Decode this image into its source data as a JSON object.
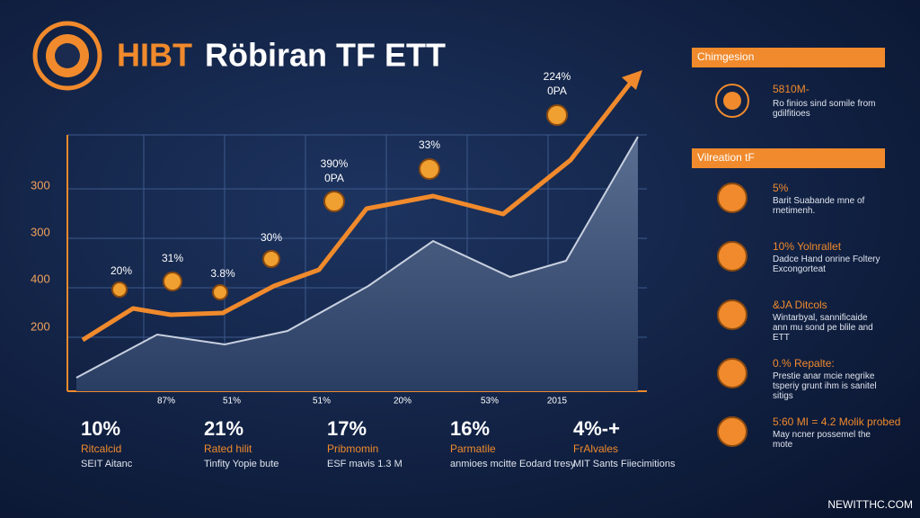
{
  "header": {
    "title_a": "HIBT",
    "title_b": "Röbiran TF ETT"
  },
  "chart": {
    "annotations": [
      [
        "224%",
        "0PA"
      ],
      [
        "33%"
      ],
      [
        "390%",
        "0PA"
      ],
      [
        "30%"
      ],
      [
        "31%"
      ],
      [
        "20%"
      ],
      [
        "3.8%"
      ]
    ],
    "y_labels": [
      "300",
      "300",
      "400",
      "200"
    ],
    "x_labels": [
      "87%",
      "51%",
      "51%",
      "20%",
      "53%",
      "2015"
    ]
  },
  "stats": [
    {
      "value": "10%",
      "label": "Ritcalcid",
      "sub": "SEIT Aitanc"
    },
    {
      "value": "21%",
      "label": "Rated hilit",
      "sub": "Tinfity Yopie bute"
    },
    {
      "value": "17%",
      "label": "Pribmomin",
      "sub": "ESF mavis 1.3 M"
    },
    {
      "value": "16%",
      "label": "Parmatile",
      "sub": "anmioes mcitte Eodard tresy"
    },
    {
      "value": "4%-+",
      "label": "FrAlvales",
      "sub": "MIT Sants Fiiecimitions"
    }
  ],
  "panel": {
    "header1": "Chimgesion",
    "item1": {
      "title": "5810M-",
      "text": "Ro finios sind somile from gdilfitioes"
    },
    "header2": "Vilreation tF",
    "items": [
      {
        "title": "5%",
        "text": "Barit Suabande mne of rnetimenh."
      },
      {
        "title": "10% Yolnrallet",
        "text": "Dadce Hand onrine Foltery Excongorteat"
      },
      {
        "title": "&JA Ditcols",
        "text": "Wintarbyal, sannificaide ann mu sond pe blile and ETT"
      },
      {
        "title": "0.% Repalte:",
        "text": "Prestie anar mcie negrike tsperiy grunt ihm is sanitel sitigs"
      },
      {
        "title": "5:60 MI = 4.2 Molik probed",
        "text": "May ncner possemel the mote"
      }
    ]
  },
  "footer": "NEWITTHC.COM"
}
